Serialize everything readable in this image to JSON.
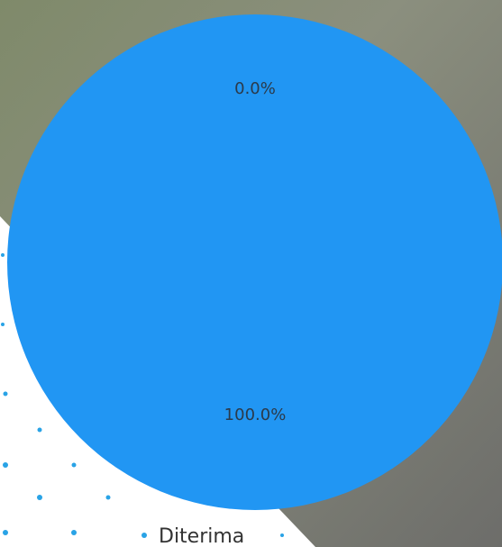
{
  "chart_data": {
    "type": "pie",
    "categories": [
      "Diterima",
      ""
    ],
    "values": [
      100.0,
      0.0
    ],
    "slice_labels": [
      "100.0%",
      "0.0%"
    ],
    "legend": [
      {
        "label": "Diterima"
      }
    ],
    "colors": {
      "slice_main": "#2196f3",
      "label_text": "#2b3a4a",
      "legend_text": "#333333",
      "dot_accent": "#29a3e6"
    },
    "legend_position": "bottom"
  }
}
